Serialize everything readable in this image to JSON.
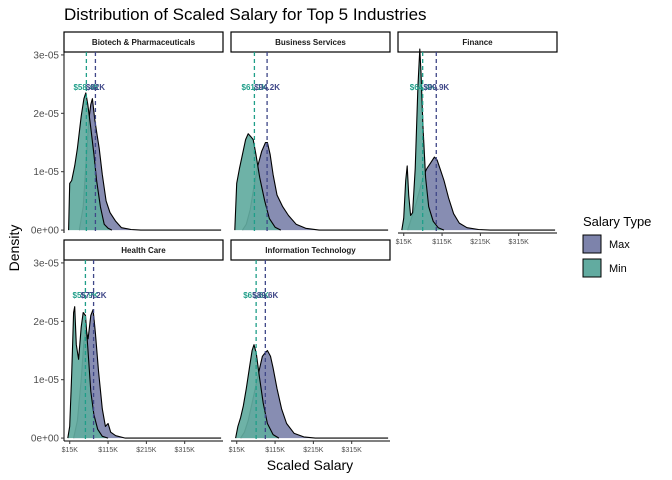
{
  "chart_data": {
    "type": "area",
    "title": "Distribution of Scaled Salary for Top 5 Industries",
    "xlabel": "Scaled Salary",
    "ylabel": "Density",
    "xlim": [
      0,
      415000
    ],
    "ylim": [
      -5e-07,
      3.05e-05
    ],
    "x_ticks": [
      {
        "value": 15000,
        "label": "$15K"
      },
      {
        "value": 115000,
        "label": "$115K"
      },
      {
        "value": 215000,
        "label": "$215K"
      },
      {
        "value": 315000,
        "label": "$315K"
      }
    ],
    "y_ticks": [
      {
        "value": 0,
        "label": "0e+00"
      },
      {
        "value": 1e-05,
        "label": "1e-05"
      },
      {
        "value": 2e-05,
        "label": "2e-05"
      },
      {
        "value": 3e-05,
        "label": "3e-05"
      }
    ],
    "legend": {
      "title": "Salary Type",
      "position": "right",
      "items": [
        {
          "name": "Max",
          "color": "#7d83ab"
        },
        {
          "name": "Min",
          "color": "#62aba0"
        }
      ]
    },
    "colors": {
      "max_fill": "#7d83ab",
      "min_fill": "#62aba0",
      "max_line": "#3f4788",
      "min_line": "#1f9e89"
    },
    "grid": false,
    "panels": [
      {
        "name": "Biotech & Pharmaceuticals",
        "min_mean": 58400,
        "min_mean_label": "$58.4K",
        "max_mean": 82000,
        "max_mean_label": "$82K",
        "series": [
          {
            "name": "Min",
            "points": [
              [
                12000,
                0
              ],
              [
                15000,
                8e-06
              ],
              [
                20000,
                8.5e-06
              ],
              [
                28000,
                1.1e-05
              ],
              [
                35000,
                1.4e-05
              ],
              [
                45000,
                1.95e-05
              ],
              [
                52000,
                2.25e-05
              ],
              [
                57000,
                2.35e-05
              ],
              [
                62000,
                2.15e-05
              ],
              [
                70000,
                1.75e-05
              ],
              [
                78000,
                1.3e-05
              ],
              [
                85000,
                8.5e-06
              ],
              [
                95000,
                4e-06
              ],
              [
                105000,
                1e-06
              ],
              [
                115000,
                3e-07
              ],
              [
                125000,
                0
              ]
            ]
          },
          {
            "name": "Max",
            "points": [
              [
                40000,
                0
              ],
              [
                50000,
                4e-06
              ],
              [
                58000,
                1.2e-05
              ],
              [
                65000,
                1.9e-05
              ],
              [
                70000,
                2.15e-05
              ],
              [
                74000,
                2.25e-05
              ],
              [
                80000,
                1.9e-05
              ],
              [
                86000,
                1.65e-05
              ],
              [
                92000,
                1.4e-05
              ],
              [
                100000,
                9.5e-06
              ],
              [
                110000,
                5e-06
              ],
              [
                120000,
                3e-06
              ],
              [
                135000,
                1.5e-06
              ],
              [
                150000,
                4e-07
              ],
              [
                175000,
                1e-07
              ],
              [
                200000,
                0
              ],
              [
                410000,
                0
              ]
            ]
          }
        ]
      },
      {
        "name": "Business Services",
        "min_mean": 61100,
        "min_mean_label": "$61.1K",
        "max_mean": 94200,
        "max_mean_label": "$94.2K",
        "series": [
          {
            "name": "Min",
            "points": [
              [
                10000,
                0
              ],
              [
                15000,
                8e-06
              ],
              [
                22000,
                1.05e-05
              ],
              [
                30000,
                1.3e-05
              ],
              [
                38000,
                1.55e-05
              ],
              [
                45000,
                1.65e-05
              ],
              [
                52000,
                1.6e-05
              ],
              [
                58000,
                1.55e-05
              ],
              [
                65000,
                1.3e-05
              ],
              [
                75000,
                9e-06
              ],
              [
                88000,
                5e-06
              ],
              [
                100000,
                2e-06
              ],
              [
                115000,
                5e-07
              ],
              [
                130000,
                0
              ]
            ]
          },
          {
            "name": "Max",
            "points": [
              [
                30000,
                0
              ],
              [
                40000,
                1e-06
              ],
              [
                50000,
                3.5e-06
              ],
              [
                60000,
                7.5e-06
              ],
              [
                70000,
                1.1e-05
              ],
              [
                80000,
                1.35e-05
              ],
              [
                90000,
                1.5e-05
              ],
              [
                95000,
                1.5e-05
              ],
              [
                102000,
                1.3e-05
              ],
              [
                110000,
                9.5e-06
              ],
              [
                120000,
                6e-06
              ],
              [
                135000,
                4e-06
              ],
              [
                150000,
                2.5e-06
              ],
              [
                170000,
                1e-06
              ],
              [
                195000,
                3e-07
              ],
              [
                230000,
                0
              ],
              [
                410000,
                0
              ]
            ]
          }
        ]
      },
      {
        "name": "Finance",
        "min_mean": 64400,
        "min_mean_label": "$64.4K",
        "max_mean": 99900,
        "max_mean_label": "$99.9K",
        "series": [
          {
            "name": "Min",
            "points": [
              [
                10000,
                0
              ],
              [
                15000,
                2e-06
              ],
              [
                20000,
                8.5e-06
              ],
              [
                24000,
                1.1e-05
              ],
              [
                28000,
                6e-06
              ],
              [
                33000,
                2.5e-06
              ],
              [
                38000,
                3e-06
              ],
              [
                45000,
                1.05e-05
              ],
              [
                52000,
                2.45e-05
              ],
              [
                57000,
                3.1e-05
              ],
              [
                60000,
                2.7e-05
              ],
              [
                65000,
                1.8e-05
              ],
              [
                72000,
                9e-06
              ],
              [
                80000,
                4e-06
              ],
              [
                92000,
                1.5e-06
              ],
              [
                105000,
                4e-07
              ],
              [
                120000,
                0
              ]
            ]
          },
          {
            "name": "Max",
            "points": [
              [
                25000,
                0
              ],
              [
                35000,
                2e-06
              ],
              [
                45000,
                4e-06
              ],
              [
                55000,
                6.5e-06
              ],
              [
                65000,
                9e-06
              ],
              [
                75000,
                1.05e-05
              ],
              [
                85000,
                1.15e-05
              ],
              [
                95000,
                1.25e-05
              ],
              [
                102000,
                1.2e-05
              ],
              [
                110000,
                1.05e-05
              ],
              [
                120000,
                8.5e-06
              ],
              [
                132000,
                5.5e-06
              ],
              [
                145000,
                2.8e-06
              ],
              [
                160000,
                1.2e-06
              ],
              [
                180000,
                4e-07
              ],
              [
                210000,
                1e-07
              ],
              [
                240000,
                0
              ],
              [
                410000,
                0
              ]
            ]
          }
        ]
      },
      {
        "name": "Health Care",
        "min_mean": 55900,
        "min_mean_label": "$55.9K",
        "max_mean": 77200,
        "max_mean_label": "$77.2K",
        "series": [
          {
            "name": "Min",
            "points": [
              [
                10000,
                0
              ],
              [
                15000,
                2e-06
              ],
              [
                20000,
                1.1e-05
              ],
              [
                25000,
                2.15e-05
              ],
              [
                28000,
                2.25e-05
              ],
              [
                32000,
                1.6e-05
              ],
              [
                38000,
                1.35e-05
              ],
              [
                45000,
                1.9e-05
              ],
              [
                50000,
                2.15e-05
              ],
              [
                56000,
                2.1e-05
              ],
              [
                62000,
                1.55e-05
              ],
              [
                70000,
                8e-06
              ],
              [
                78000,
                4e-06
              ],
              [
                88000,
                1.5e-06
              ],
              [
                100000,
                3e-07
              ],
              [
                115000,
                0
              ]
            ]
          },
          {
            "name": "Max",
            "points": [
              [
                25000,
                0
              ],
              [
                35000,
                3e-06
              ],
              [
                45000,
                1e-05
              ],
              [
                52000,
                1.65e-05
              ],
              [
                58000,
                1.85e-05
              ],
              [
                63000,
                1.7e-05
              ],
              [
                70000,
                2.1e-05
              ],
              [
                76000,
                2.2e-05
              ],
              [
                82000,
                1.8e-05
              ],
              [
                90000,
                1.15e-05
              ],
              [
                100000,
                5e-06
              ],
              [
                108000,
                2e-06
              ],
              [
                115000,
                2.5e-06
              ],
              [
                122000,
                1e-06
              ],
              [
                135000,
                4e-07
              ],
              [
                160000,
                0
              ],
              [
                410000,
                0
              ]
            ]
          }
        ]
      },
      {
        "name": "Information Technology",
        "min_mean": 65600,
        "min_mean_label": "$65.6K",
        "max_mean": 89600,
        "max_mean_label": "$89.6K",
        "series": [
          {
            "name": "Min",
            "points": [
              [
                12000,
                0
              ],
              [
                18000,
                2e-06
              ],
              [
                25000,
                3.5e-06
              ],
              [
                32000,
                5.5e-06
              ],
              [
                40000,
                8.5e-06
              ],
              [
                48000,
                1.2e-05
              ],
              [
                55000,
                1.5e-05
              ],
              [
                60000,
                1.6e-05
              ],
              [
                66000,
                1.45e-05
              ],
              [
                74000,
                1.05e-05
              ],
              [
                84000,
                6e-06
              ],
              [
                95000,
                2.5e-06
              ],
              [
                110000,
                6e-07
              ],
              [
                125000,
                0
              ]
            ]
          },
          {
            "name": "Max",
            "points": [
              [
                25000,
                0
              ],
              [
                35000,
                1e-06
              ],
              [
                45000,
                3e-06
              ],
              [
                55000,
                6e-06
              ],
              [
                65000,
                9e-06
              ],
              [
                75000,
                1.2e-05
              ],
              [
                82000,
                1.4e-05
              ],
              [
                88000,
                1.45e-05
              ],
              [
                95000,
                1.5e-05
              ],
              [
                103000,
                1.4e-05
              ],
              [
                110000,
                1.2e-05
              ],
              [
                120000,
                8.5e-06
              ],
              [
                132000,
                5e-06
              ],
              [
                145000,
                2.5e-06
              ],
              [
                165000,
                8e-07
              ],
              [
                190000,
                2e-07
              ],
              [
                220000,
                0
              ],
              [
                410000,
                0
              ]
            ]
          }
        ]
      }
    ]
  }
}
